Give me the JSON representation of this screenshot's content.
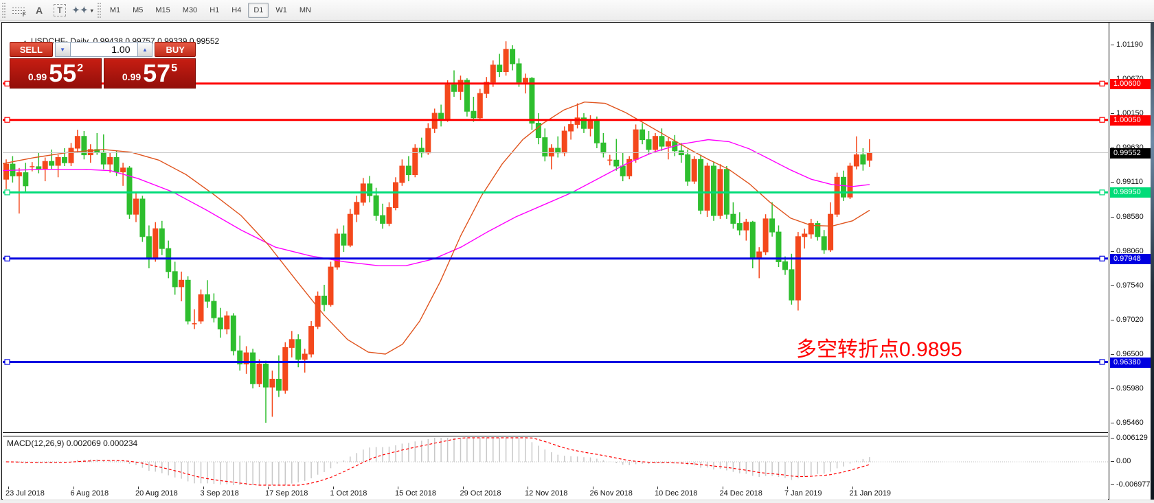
{
  "toolbar": {
    "tools": [
      {
        "name": "fibonacci-retracement",
        "glyph": "F"
      },
      {
        "name": "text-label",
        "glyph": "A"
      },
      {
        "name": "text",
        "glyph": "T"
      },
      {
        "name": "arrows",
        "glyph": "✦✦",
        "caret": "▾"
      }
    ],
    "timeframes": [
      "M1",
      "M5",
      "M15",
      "M30",
      "H1",
      "H4",
      "D1",
      "W1",
      "MN"
    ],
    "selected_timeframe": "D1"
  },
  "header": {
    "collapse_arrow": "▲",
    "symbol": "USDCHF-,Daily",
    "open": "0.99438",
    "high": "0.99757",
    "low": "0.99339",
    "close": "0.99552"
  },
  "trade_panel": {
    "sell_label": "SELL",
    "buy_label": "BUY",
    "volume": "1.00",
    "spin_down": "▼",
    "spin_up": "▲",
    "sell_big": {
      "prefix": "0.99",
      "digits": "55",
      "sup": "2"
    },
    "buy_big": {
      "prefix": "0.99",
      "digits": "57",
      "sup": "5"
    }
  },
  "annotation": {
    "text": "多空转折点0.9895",
    "color": "#ff0000"
  },
  "price_scale_ticks": [
    [
      "1.01190",
      1.0119
    ],
    [
      "1.00670",
      1.0067
    ],
    [
      "1.00150",
      1.0015
    ],
    [
      "0.99630",
      0.9963
    ],
    [
      "0.99110",
      0.9911
    ],
    [
      "0.98580",
      0.9858
    ],
    [
      "0.98060",
      0.9806
    ],
    [
      "0.97540",
      0.9754
    ],
    [
      "0.97020",
      0.9702
    ],
    [
      "0.96500",
      0.965
    ],
    [
      "0.95980",
      0.9598
    ],
    [
      "0.95460",
      0.9546
    ]
  ],
  "price_tags": [
    {
      "text": "1.00600",
      "price": 1.006,
      "bg": "#ff0000",
      "fg": "#ffffff"
    },
    {
      "text": "1.00050",
      "price": 1.0005,
      "bg": "#ff0000",
      "fg": "#ffffff"
    },
    {
      "text": "0.99552",
      "price": 0.99552,
      "bg": "#000000",
      "fg": "#ffffff"
    },
    {
      "text": "0.98950",
      "price": 0.9895,
      "bg": "#00dc78",
      "fg": "#ffffff"
    },
    {
      "text": "0.97948",
      "price": 0.97948,
      "bg": "#0000e0",
      "fg": "#ffffff"
    },
    {
      "text": "0.96380",
      "price": 0.9638,
      "bg": "#0000e0",
      "fg": "#ffffff"
    }
  ],
  "time_axis": [
    "23 Jul 2018",
    "6 Aug 2018",
    "20 Aug 2018",
    "3 Sep 2018",
    "17 Sep 2018",
    "1 Oct 2018",
    "15 Oct 2018",
    "29 Oct 2018",
    "12 Nov 2018",
    "26 Nov 2018",
    "10 Dec 2018",
    "24 Dec 2018",
    "7 Jan 2019",
    "21 Jan 2019"
  ],
  "macd_panel": {
    "label": "MACD(12,26,9)",
    "main_value": "0.002069",
    "signal_value": "0.000234",
    "scale": [
      [
        "0.006129",
        0.006129
      ],
      [
        "0.00",
        0
      ],
      [
        "-0.006977",
        -0.006977
      ]
    ]
  },
  "chart_data": {
    "type": "candlestick",
    "symbol": "USDCHF",
    "timeframe": "Daily",
    "title": "USDCHF-,Daily",
    "up_color": "#f4481c",
    "down_color": "#2ebe2e",
    "bid": 0.99552,
    "bid_line_color": "#c9c9c9",
    "ylim": [
      0.95294,
      1.01513
    ],
    "grid": false,
    "hlines": [
      {
        "price": 1.006,
        "color": "#ff0000",
        "w": 3
      },
      {
        "price": 1.0005,
        "color": "#ff0000",
        "w": 3
      },
      {
        "price": 0.9895,
        "color": "#00dc78",
        "w": 3
      },
      {
        "price": 0.97948,
        "color": "#0000e0",
        "w": 3
      },
      {
        "price": 0.9638,
        "color": "#0000e0",
        "w": 3
      }
    ],
    "candles": [
      [
        0.9915,
        0.9945,
        0.99,
        0.9938
      ],
      [
        0.9938,
        0.995,
        0.991,
        0.992
      ],
      [
        0.992,
        0.9932,
        0.9863,
        0.9925
      ],
      [
        0.9925,
        0.994,
        0.9895,
        0.9905
      ],
      [
        0.9934,
        0.9941,
        0.9927,
        0.9934
      ],
      [
        0.9934,
        0.9955,
        0.9924,
        0.993
      ],
      [
        0.993,
        0.9948,
        0.9912,
        0.9942
      ],
      [
        0.9942,
        0.996,
        0.993,
        0.9936
      ],
      [
        0.9936,
        0.9952,
        0.9918,
        0.9948
      ],
      [
        0.9948,
        0.9962,
        0.9935,
        0.994
      ],
      [
        0.994,
        0.997,
        0.9935,
        0.9962
      ],
      [
        0.9962,
        0.999,
        0.9955,
        0.998
      ],
      [
        0.998,
        0.9988,
        0.9945,
        0.9952
      ],
      [
        0.9952,
        0.9968,
        0.994,
        0.996
      ],
      [
        0.996,
        0.9985,
        0.9952,
        0.9956
      ],
      [
        0.9956,
        0.9983,
        0.993,
        0.9938
      ],
      [
        0.9938,
        0.9955,
        0.9925,
        0.9948
      ],
      [
        0.9948,
        0.9958,
        0.992,
        0.9926
      ],
      [
        0.9926,
        0.994,
        0.9905,
        0.9932
      ],
      [
        0.9932,
        0.9935,
        0.9855,
        0.9862
      ],
      [
        0.9862,
        0.9895,
        0.985,
        0.9885
      ],
      [
        0.9885,
        0.989,
        0.982,
        0.9828
      ],
      [
        0.9828,
        0.9845,
        0.978,
        0.9795
      ],
      [
        0.9795,
        0.985,
        0.979,
        0.984
      ],
      [
        0.984,
        0.9852,
        0.98,
        0.981
      ],
      [
        0.981,
        0.9822,
        0.9765,
        0.9775
      ],
      [
        0.9775,
        0.979,
        0.974,
        0.9752
      ],
      [
        0.9752,
        0.9775,
        0.973,
        0.9762
      ],
      [
        0.9762,
        0.9768,
        0.9695,
        0.97
      ],
      [
        0.9696,
        0.9718,
        0.9688,
        0.9696
      ],
      [
        0.97,
        0.9748,
        0.9696,
        0.974
      ],
      [
        0.974,
        0.9762,
        0.972,
        0.973
      ],
      [
        0.973,
        0.9742,
        0.9698,
        0.9705
      ],
      [
        0.9705,
        0.972,
        0.9675,
        0.9688
      ],
      [
        0.9688,
        0.9715,
        0.968,
        0.9708
      ],
      [
        0.9708,
        0.9712,
        0.9648,
        0.9655
      ],
      [
        0.9655,
        0.9678,
        0.9625,
        0.9635
      ],
      [
        0.9635,
        0.9662,
        0.962,
        0.9652
      ],
      [
        0.9652,
        0.9658,
        0.9598,
        0.9605
      ],
      [
        0.9605,
        0.9642,
        0.96,
        0.9635
      ],
      [
        0.9635,
        0.964,
        0.9546,
        0.96
      ],
      [
        0.96,
        0.9625,
        0.9555,
        0.9612
      ],
      [
        0.9612,
        0.9648,
        0.9585,
        0.9595
      ],
      [
        0.9595,
        0.9668,
        0.959,
        0.966
      ],
      [
        0.966,
        0.9685,
        0.9645,
        0.9672
      ],
      [
        0.9672,
        0.968,
        0.963,
        0.9642
      ],
      [
        0.9642,
        0.9658,
        0.9622,
        0.965
      ],
      [
        0.965,
        0.97,
        0.9645,
        0.9692
      ],
      [
        0.9692,
        0.9745,
        0.9688,
        0.9738
      ],
      [
        0.9738,
        0.9755,
        0.9715,
        0.9725
      ],
      [
        0.9725,
        0.979,
        0.9722,
        0.9782
      ],
      [
        0.9782,
        0.984,
        0.9778,
        0.9832
      ],
      [
        0.9832,
        0.9845,
        0.9805,
        0.9815
      ],
      [
        0.9815,
        0.987,
        0.9812,
        0.9862
      ],
      [
        0.9862,
        0.989,
        0.985,
        0.988
      ],
      [
        0.988,
        0.9917,
        0.9875,
        0.9908
      ],
      [
        0.9908,
        0.992,
        0.988,
        0.989
      ],
      [
        0.989,
        0.9902,
        0.9852,
        0.986
      ],
      [
        0.986,
        0.9878,
        0.984,
        0.9848
      ],
      [
        0.9848,
        0.988,
        0.9844,
        0.9872
      ],
      [
        0.9872,
        0.9918,
        0.9868,
        0.991
      ],
      [
        0.991,
        0.9945,
        0.9905,
        0.9935
      ],
      [
        0.9935,
        0.995,
        0.9912,
        0.9922
      ],
      [
        0.9922,
        0.9968,
        0.9918,
        0.9962
      ],
      [
        0.9962,
        0.9978,
        0.9948,
        0.9955
      ],
      [
        0.9955,
        1.0,
        0.9952,
        0.9992
      ],
      [
        0.9992,
        1.0022,
        0.9985,
        1.0015
      ],
      [
        1.0015,
        1.0028,
        0.9995,
        1.0005
      ],
      [
        1.0005,
        1.0065,
        1.0002,
        1.0058
      ],
      [
        1.0058,
        1.008,
        1.004,
        1.0048
      ],
      [
        1.0048,
        1.0072,
        1.0035,
        1.0065
      ],
      [
        1.0065,
        1.0068,
        1.001,
        1.0018
      ],
      [
        1.0018,
        1.004,
        1.0002,
        1.0008
      ],
      [
        1.0008,
        1.0052,
        1.0005,
        1.0045
      ],
      [
        1.0045,
        1.007,
        1.0038,
        1.0062
      ],
      [
        1.0062,
        1.0095,
        1.0055,
        1.0088
      ],
      [
        1.0088,
        1.0105,
        1.007,
        1.0078
      ],
      [
        1.0078,
        1.0124,
        1.0072,
        1.0112
      ],
      [
        1.0112,
        1.0118,
        1.008,
        1.009
      ],
      [
        1.009,
        1.0098,
        1.0055,
        1.0062
      ],
      [
        1.0062,
        1.0075,
        1.0045,
        1.0068
      ],
      [
        1.0068,
        1.007,
        0.999,
        1.0
      ],
      [
        1.0,
        1.0015,
        0.9968,
        0.9978
      ],
      [
        0.9978,
        0.9992,
        0.9942,
        0.995
      ],
      [
        0.995,
        0.9968,
        0.993,
        0.9962
      ],
      [
        0.9962,
        0.998,
        0.9948,
        0.9955
      ],
      [
        0.9955,
        0.9995,
        0.995,
        0.9988
      ],
      [
        0.9988,
        1.0005,
        0.9975,
        0.9998
      ],
      [
        0.9998,
        1.003,
        0.9992,
        1.0008
      ],
      [
        1.0008,
        1.0015,
        0.9985,
        0.9992
      ],
      [
        0.9992,
        1.0012,
        0.998,
        1.0005
      ],
      [
        1.0005,
        1.001,
        0.9962,
        0.997
      ],
      [
        0.997,
        0.9985,
        0.9948,
        0.9955
      ],
      [
        0.9944,
        0.9952,
        0.9936,
        0.9944
      ],
      [
        0.9944,
        0.9976,
        0.9928,
        0.9935
      ],
      [
        0.9935,
        0.9955,
        0.9912,
        0.992
      ],
      [
        0.992,
        0.995,
        0.9915,
        0.9945
      ],
      [
        0.9945,
        0.9998,
        0.994,
        0.999
      ],
      [
        0.999,
        1.0,
        0.9968,
        0.9975
      ],
      [
        0.9975,
        0.9988,
        0.9952,
        0.996
      ],
      [
        0.996,
        0.9985,
        0.9955,
        0.998
      ],
      [
        0.998,
        0.9992,
        0.9958,
        0.9965
      ],
      [
        0.9965,
        0.9978,
        0.9945,
        0.9972
      ],
      [
        0.9972,
        0.9982,
        0.995,
        0.9958
      ],
      [
        0.9958,
        0.997,
        0.994,
        0.9952
      ],
      [
        0.9952,
        0.996,
        0.9905,
        0.9912
      ],
      [
        0.9912,
        0.995,
        0.9908,
        0.9945
      ],
      [
        0.9945,
        0.9952,
        0.9862,
        0.9868
      ],
      [
        0.9868,
        0.994,
        0.9858,
        0.9935
      ],
      [
        0.9935,
        0.9942,
        0.9852,
        0.986
      ],
      [
        0.986,
        0.9938,
        0.9855,
        0.993
      ],
      [
        0.993,
        0.9935,
        0.9855,
        0.9862
      ],
      [
        0.9862,
        0.988,
        0.984,
        0.9848
      ],
      [
        0.9848,
        0.9865,
        0.983,
        0.9838
      ],
      [
        0.9838,
        0.9855,
        0.9822,
        0.985
      ],
      [
        0.985,
        0.9852,
        0.978,
        0.9795
      ],
      [
        0.9795,
        0.9812,
        0.9765,
        0.9805
      ],
      [
        0.9805,
        0.9862,
        0.98,
        0.9855
      ],
      [
        0.9855,
        0.988,
        0.9828,
        0.9835
      ],
      [
        0.9835,
        0.9845,
        0.9782,
        0.979
      ],
      [
        0.979,
        0.9798,
        0.977,
        0.9778
      ],
      [
        0.9778,
        0.9802,
        0.9725,
        0.9732
      ],
      [
        0.9732,
        0.9835,
        0.9716,
        0.9828
      ],
      [
        0.9828,
        0.984,
        0.981,
        0.9832
      ],
      [
        0.9832,
        0.9855,
        0.9825,
        0.9848
      ],
      [
        0.9848,
        0.9852,
        0.9822,
        0.9828
      ],
      [
        0.9828,
        0.9838,
        0.9802,
        0.9808
      ],
      [
        0.9808,
        0.988,
        0.9805,
        0.9862
      ],
      [
        0.9862,
        0.9925,
        0.9858,
        0.9918
      ],
      [
        0.9918,
        0.9928,
        0.9882,
        0.9888
      ],
      [
        0.9888,
        0.994,
        0.9885,
        0.9935
      ],
      [
        0.9935,
        0.998,
        0.993,
        0.9952
      ],
      [
        0.9952,
        0.9962,
        0.9928,
        0.9938
      ],
      [
        0.99438,
        0.99757,
        0.99339,
        0.99552
      ]
    ],
    "ma": [
      {
        "name": "ma-magenta",
        "color": "#ff00ff",
        "points": [
          [
            0,
            0.9928
          ],
          [
            60,
            0.993
          ],
          [
            120,
            0.993
          ],
          [
            160,
            0.9928
          ],
          [
            200,
            0.9916
          ],
          [
            250,
            0.9896
          ],
          [
            300,
            0.9868
          ],
          [
            350,
            0.9838
          ],
          [
            400,
            0.9812
          ],
          [
            450,
            0.9799
          ],
          [
            500,
            0.979
          ],
          [
            550,
            0.9784
          ],
          [
            590,
            0.9784
          ],
          [
            630,
            0.9794
          ],
          [
            670,
            0.9812
          ],
          [
            710,
            0.9836
          ],
          [
            750,
            0.9858
          ],
          [
            790,
            0.9876
          ],
          [
            830,
            0.9894
          ],
          [
            870,
            0.9916
          ],
          [
            910,
            0.9938
          ],
          [
            950,
            0.9956
          ],
          [
            990,
            0.9968
          ],
          [
            1030,
            0.9975
          ],
          [
            1060,
            0.9972
          ],
          [
            1090,
            0.9961
          ],
          [
            1120,
            0.9945
          ],
          [
            1150,
            0.9929
          ],
          [
            1180,
            0.9915
          ],
          [
            1210,
            0.9907
          ],
          [
            1240,
            0.9904
          ],
          [
            1265,
            0.9907
          ]
        ]
      },
      {
        "name": "ma-orange",
        "color": "#e0541e",
        "points": [
          [
            0,
            0.9938
          ],
          [
            50,
            0.9948
          ],
          [
            100,
            0.9956
          ],
          [
            150,
            0.996
          ],
          [
            190,
            0.9956
          ],
          [
            230,
            0.9944
          ],
          [
            270,
            0.9922
          ],
          [
            310,
            0.9892
          ],
          [
            350,
            0.986
          ],
          [
            390,
            0.9815
          ],
          [
            430,
            0.9762
          ],
          [
            470,
            0.971
          ],
          [
            505,
            0.9672
          ],
          [
            535,
            0.9653
          ],
          [
            560,
            0.965
          ],
          [
            585,
            0.9665
          ],
          [
            610,
            0.97
          ],
          [
            640,
            0.976
          ],
          [
            670,
            0.983
          ],
          [
            700,
            0.989
          ],
          [
            730,
            0.9938
          ],
          [
            760,
            0.9975
          ],
          [
            790,
            1.0
          ],
          [
            820,
            1.002
          ],
          [
            850,
            1.0032
          ],
          [
            880,
            1.003
          ],
          [
            910,
            1.0016
          ],
          [
            940,
            0.9998
          ],
          [
            970,
            0.998
          ],
          [
            1000,
            0.9962
          ],
          [
            1030,
            0.9945
          ],
          [
            1060,
            0.993
          ],
          [
            1090,
            0.9908
          ],
          [
            1120,
            0.988
          ],
          [
            1150,
            0.9856
          ],
          [
            1180,
            0.9845
          ],
          [
            1210,
            0.9844
          ],
          [
            1240,
            0.9852
          ],
          [
            1265,
            0.9868
          ]
        ]
      }
    ],
    "macd": {
      "fast": 12,
      "slow": 26,
      "signal": 9,
      "hist_color": "#c8c8c8",
      "signal_color": "#ff0000",
      "zero_line_color": "#bdbdbd"
    }
  }
}
